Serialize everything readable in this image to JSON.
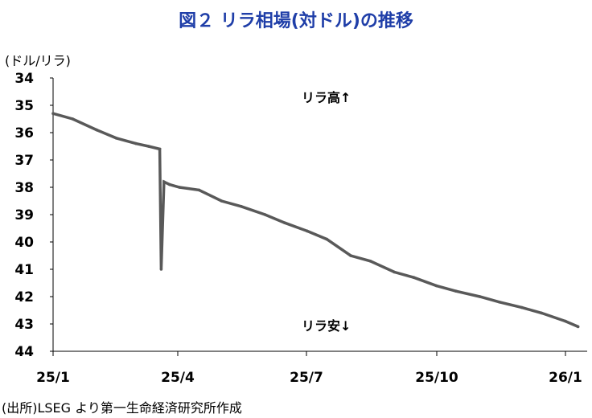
{
  "title": "図２ リラ相場(対ドル)の推移",
  "unit_label": "(ドル/リラ)",
  "source": "(出所)LSEG より第一生命経済研究所作成",
  "annotations": {
    "lira_up": "リラ高↑",
    "lira_down": "リラ安↓"
  },
  "chart_data": {
    "type": "line",
    "title": "図２ リラ相場(対ドル)の推移",
    "ylabel": "(ドル/リラ)",
    "xlabel": "",
    "ylim": [
      34,
      44
    ],
    "y_inverted": true,
    "yticks": [
      "34",
      "35",
      "36",
      "37",
      "38",
      "39",
      "40",
      "41",
      "42",
      "43",
      "44"
    ],
    "xticks": [
      "25/1",
      "25/4",
      "25/7",
      "25/10",
      "26/1"
    ],
    "grid": false,
    "series": [
      {
        "color": "#595959",
        "x": [
          "2025-01-01",
          "2025-01-15",
          "2025-02-01",
          "2025-02-15",
          "2025-03-01",
          "2025-03-10",
          "2025-03-18",
          "2025-03-19",
          "2025-03-21",
          "2025-03-25",
          "2025-04-01",
          "2025-04-15",
          "2025-05-01",
          "2025-05-15",
          "2025-06-01",
          "2025-06-15",
          "2025-07-01",
          "2025-07-15",
          "2025-08-01",
          "2025-08-15",
          "2025-09-01",
          "2025-09-15",
          "2025-10-01",
          "2025-10-15",
          "2025-11-01",
          "2025-11-15",
          "2025-12-01",
          "2025-12-15",
          "2026-01-01",
          "2026-01-10"
        ],
        "y": [
          35.3,
          35.5,
          35.9,
          36.2,
          36.4,
          36.5,
          36.6,
          41.0,
          37.8,
          37.9,
          38.0,
          38.1,
          38.5,
          38.7,
          39.0,
          39.3,
          39.6,
          39.9,
          40.5,
          40.7,
          41.1,
          41.3,
          41.6,
          41.8,
          42.0,
          42.2,
          42.4,
          42.6,
          42.9,
          43.1
        ]
      }
    ]
  }
}
